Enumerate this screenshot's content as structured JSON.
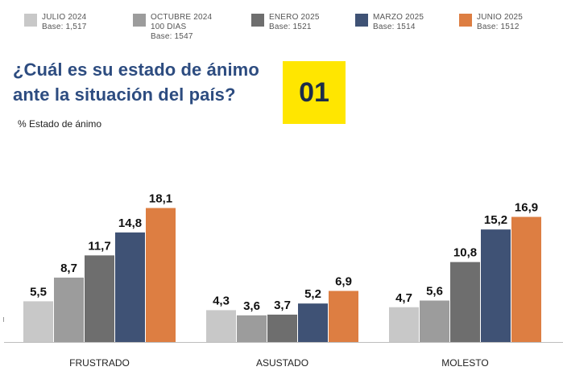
{
  "legend": [
    {
      "label": "JULIO 2024",
      "base": "Base: 1,517",
      "color": "#c8c8c8"
    },
    {
      "label": "OCTUBRE 2024",
      "extra": "100 DIAS",
      "base": "Base: 1547",
      "color": "#9c9c9c"
    },
    {
      "label": "ENERO 2025",
      "base": "Base: 1521",
      "color": "#6e6e6e"
    },
    {
      "label": "MARZO 2025",
      "base": "Base: 1514",
      "color": "#3f5275"
    },
    {
      "label": "JUNIO 2025",
      "base": "Base: 1512",
      "color": "#dd7e42"
    }
  ],
  "question": {
    "line1": "¿Cuál es su estado de ánimo",
    "line2": "ante la situación del país?"
  },
  "badge": "01",
  "subtitle": "% Estado de ánimo",
  "chart_data": {
    "type": "bar",
    "title": "¿Cuál es su estado de ánimo ante la situación del país?",
    "ylabel": "% Estado de ánimo",
    "categories": [
      "FRUSTRADO",
      "ASUSTADO",
      "MOLESTO"
    ],
    "series": [
      {
        "name": "JULIO 2024",
        "values": [
          5.5,
          4.3,
          4.7
        ],
        "labels": [
          "5,5",
          "4,3",
          "4,7"
        ]
      },
      {
        "name": "OCTUBRE 2024",
        "values": [
          8.7,
          3.6,
          5.6
        ],
        "labels": [
          "8,7",
          "3,6",
          "5,6"
        ]
      },
      {
        "name": "ENERO 2025",
        "values": [
          11.7,
          3.7,
          10.8
        ],
        "labels": [
          "11,7",
          "3,7",
          "10,8"
        ]
      },
      {
        "name": "MARZO 2025",
        "values": [
          14.8,
          5.2,
          15.2
        ],
        "labels": [
          "14,8",
          "5,2",
          "15,2"
        ]
      },
      {
        "name": "JUNIO 2025",
        "values": [
          18.1,
          6.9,
          16.9
        ],
        "labels": [
          "18,1",
          "6,9",
          "16,9"
        ]
      }
    ],
    "ylim": [
      0,
      20
    ],
    "grid": false,
    "legend": "top"
  }
}
